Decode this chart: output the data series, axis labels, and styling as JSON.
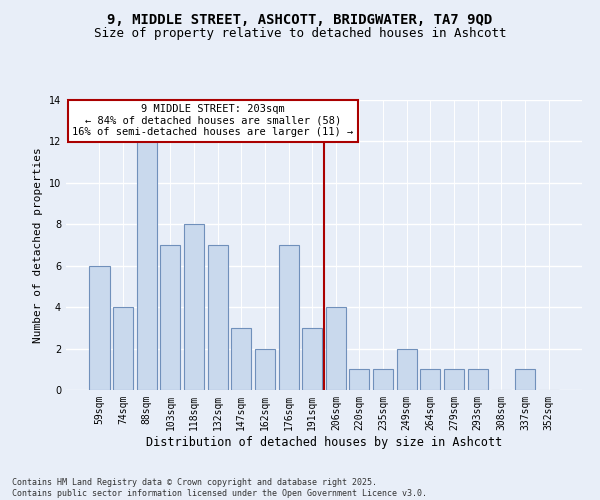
{
  "title1": "9, MIDDLE STREET, ASHCOTT, BRIDGWATER, TA7 9QD",
  "title2": "Size of property relative to detached houses in Ashcott",
  "xlabel": "Distribution of detached houses by size in Ashcott",
  "ylabel": "Number of detached properties",
  "categories": [
    "59sqm",
    "74sqm",
    "88sqm",
    "103sqm",
    "118sqm",
    "132sqm",
    "147sqm",
    "162sqm",
    "176sqm",
    "191sqm",
    "206sqm",
    "220sqm",
    "235sqm",
    "249sqm",
    "264sqm",
    "279sqm",
    "293sqm",
    "308sqm",
    "337sqm",
    "352sqm"
  ],
  "values": [
    6,
    4,
    12,
    7,
    8,
    7,
    3,
    2,
    7,
    3,
    4,
    1,
    1,
    2,
    1,
    1,
    1,
    0,
    1,
    0
  ],
  "bar_color": "#c9d9ed",
  "bar_edge_color": "#7090bb",
  "vline_x": 10,
  "vline_color": "#aa0000",
  "annotation_text": "9 MIDDLE STREET: 203sqm\n← 84% of detached houses are smaller (58)\n16% of semi-detached houses are larger (11) →",
  "annotation_box_color": "#ffffff",
  "annotation_box_edge_color": "#aa0000",
  "ylim": [
    0,
    14
  ],
  "yticks": [
    0,
    2,
    4,
    6,
    8,
    10,
    12,
    14
  ],
  "background_color": "#e8eef8",
  "grid_color": "#ffffff",
  "footnote": "Contains HM Land Registry data © Crown copyright and database right 2025.\nContains public sector information licensed under the Open Government Licence v3.0.",
  "title_fontsize": 10,
  "subtitle_fontsize": 9,
  "xlabel_fontsize": 8.5,
  "ylabel_fontsize": 8,
  "tick_fontsize": 7,
  "annotation_fontsize": 7.5,
  "footnote_fontsize": 6
}
